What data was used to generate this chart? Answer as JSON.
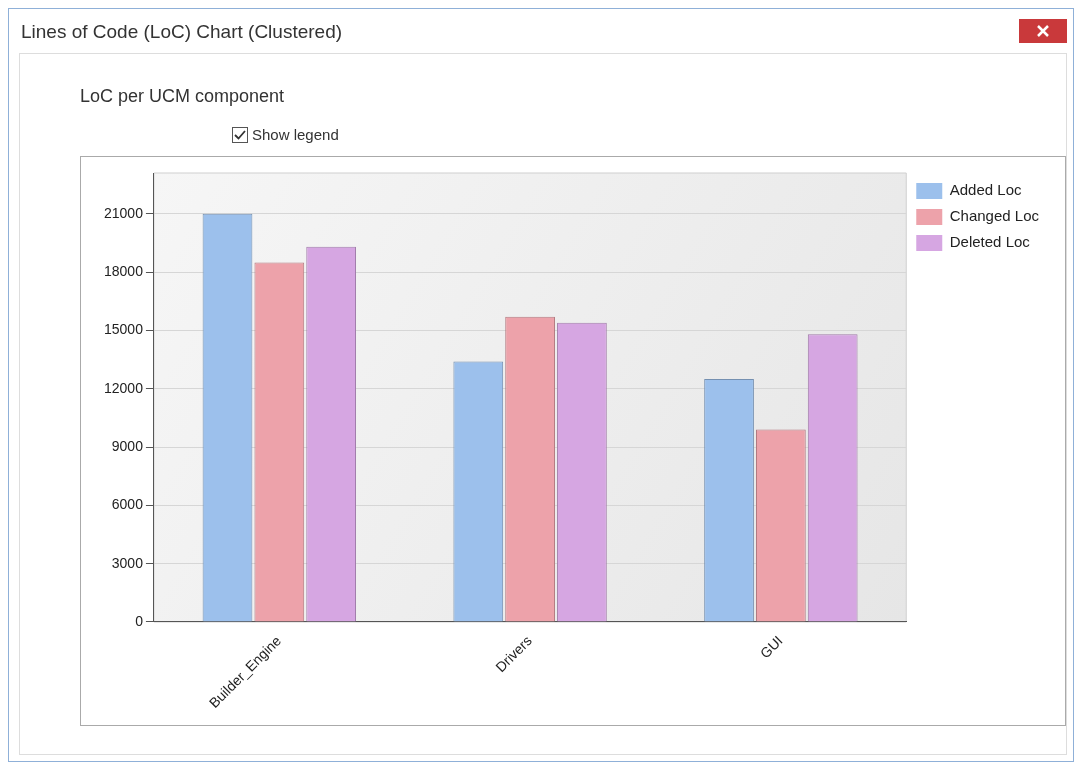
{
  "chart_data": {
    "type": "bar",
    "title": "Lines of Code (LoC) Chart (Clustered)",
    "subtitle": "LoC per UCM component",
    "annotations": [
      "Show legend"
    ],
    "categories": [
      "Builder_Engine",
      "Drivers",
      "GUI"
    ],
    "series": [
      {
        "name": "Added Loc",
        "color": "#9cc0ec",
        "values": [
          21000,
          13400,
          12500
        ]
      },
      {
        "name": "Changed Loc",
        "color": "#eda2aa",
        "values": [
          18500,
          15700,
          9900
        ]
      },
      {
        "name": "Deleted Loc",
        "color": "#d6a6e2",
        "values": [
          19300,
          15400,
          14800
        ]
      }
    ],
    "ylim": [
      0,
      23100
    ],
    "yticks": [
      0,
      3000,
      6000,
      9000,
      12000,
      15000,
      18000,
      21000
    ],
    "grid": "y",
    "legend": "top right"
  }
}
